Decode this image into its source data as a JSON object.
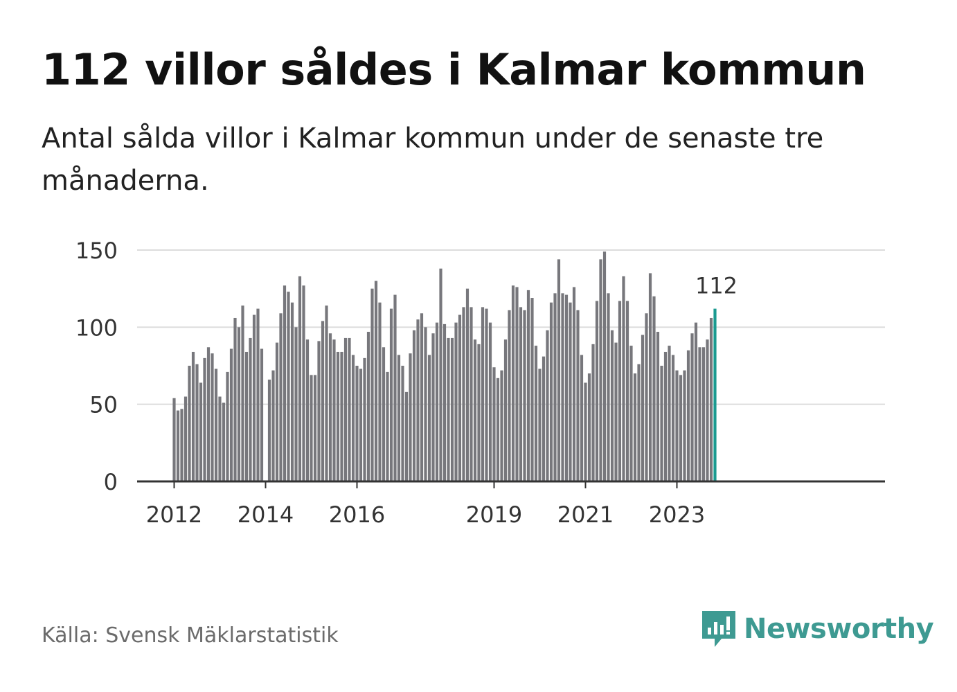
{
  "header": {
    "title": "112 villor såldes i Kalmar kommun",
    "subtitle": "Antal sålda villor i Kalmar kommun under de senaste tre månaderna."
  },
  "chart_data": {
    "type": "bar",
    "title": "112 villor såldes i Kalmar kommun",
    "subtitle": "Antal sålda villor i Kalmar kommun under de senaste tre månaderna.",
    "xlabel": "",
    "ylabel": "",
    "ylim": [
      0,
      150
    ],
    "yticks": [
      0,
      50,
      100,
      150
    ],
    "grid": true,
    "start_year": 2012,
    "xtick_labels": [
      {
        "label": "2012",
        "index": 0
      },
      {
        "label": "2014",
        "index": 24
      },
      {
        "label": "2016",
        "index": 48
      },
      {
        "label": "2019",
        "index": 84
      },
      {
        "label": "2021",
        "index": 108
      },
      {
        "label": "2023",
        "index": 132
      }
    ],
    "values": [
      54,
      46,
      47,
      55,
      75,
      84,
      76,
      64,
      80,
      87,
      83,
      73,
      55,
      51,
      71,
      86,
      106,
      100,
      114,
      84,
      93,
      108,
      112,
      86,
      null,
      66,
      72,
      90,
      109,
      127,
      123,
      116,
      100,
      133,
      127,
      92,
      69,
      69,
      91,
      104,
      114,
      96,
      92,
      84,
      84,
      93,
      93,
      82,
      75,
      73,
      80,
      97,
      125,
      130,
      116,
      87,
      71,
      112,
      121,
      82,
      75,
      58,
      83,
      98,
      105,
      109,
      100,
      82,
      96,
      103,
      138,
      102,
      93,
      93,
      103,
      108,
      113,
      125,
      113,
      92,
      89,
      113,
      112,
      103,
      74,
      67,
      72,
      92,
      111,
      127,
      126,
      113,
      111,
      124,
      119,
      88,
      73,
      81,
      98,
      116,
      122,
      144,
      122,
      121,
      116,
      126,
      111,
      82,
      64,
      70,
      89,
      117,
      144,
      149,
      122,
      98,
      90,
      117,
      133,
      117,
      88,
      70,
      76,
      95,
      109,
      135,
      120,
      97,
      75,
      84,
      88,
      82,
      72,
      69,
      72,
      85,
      96,
      103,
      87,
      87,
      92,
      106,
      112
    ],
    "highlight": {
      "label": "112",
      "value": 112,
      "color": "#1a9a90"
    },
    "bar_color": "#77777c",
    "grid_color": "#dcdcdc",
    "axis_color": "#333333"
  },
  "footer": {
    "source": "Källa: Svensk Mäklarstatistik",
    "brand": "Newsworthy",
    "brand_icon": "newsworthy-logo-icon",
    "brand_color": "#3e9a92"
  }
}
